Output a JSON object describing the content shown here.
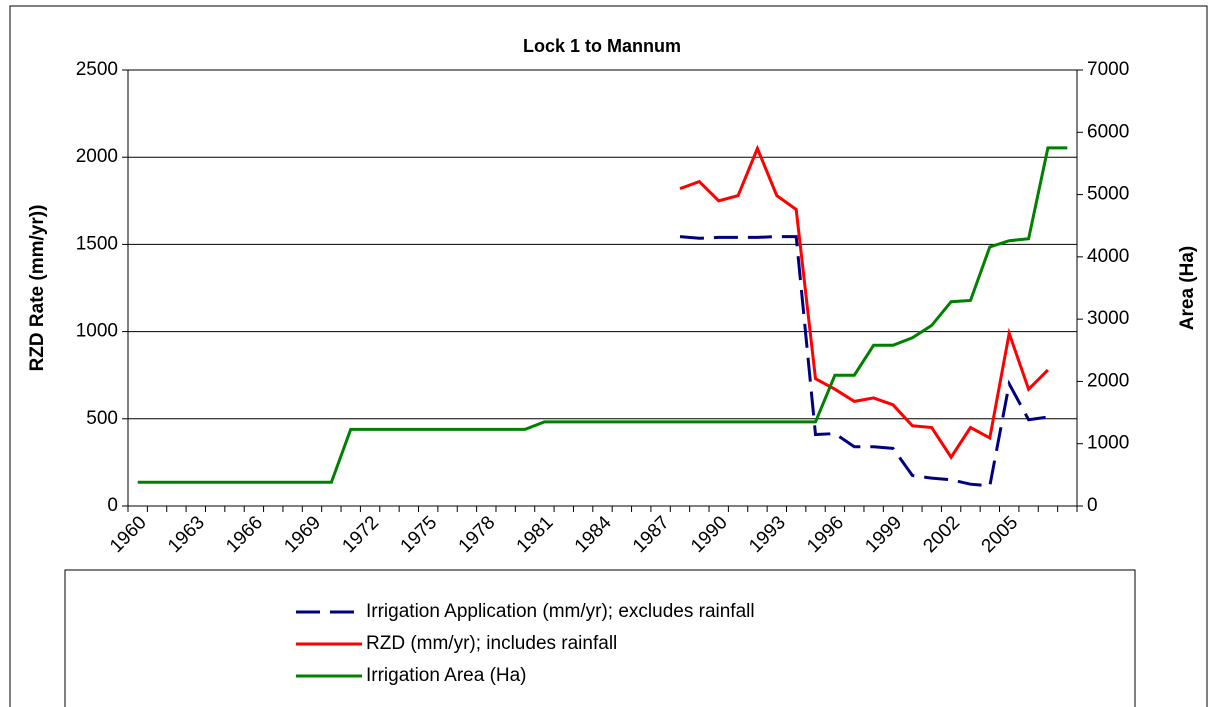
{
  "chart_data": {
    "type": "line",
    "title": "Lock 1 to Mannum",
    "y_label": "RZD Rate (mm/yr))",
    "y2_label": "Area (Ha)",
    "categories": [
      "1960",
      null,
      null,
      "1963",
      null,
      null,
      "1966",
      null,
      null,
      "1969",
      null,
      null,
      "1972",
      null,
      null,
      "1975",
      null,
      null,
      "1978",
      null,
      null,
      "1981",
      null,
      null,
      "1984",
      null,
      null,
      "1987",
      null,
      null,
      "1990",
      null,
      null,
      "1993",
      null,
      null,
      "1996",
      null,
      null,
      "1999",
      null,
      null,
      "2002",
      null,
      null,
      "2005",
      null,
      null,
      null
    ],
    "ylim": [
      0,
      2500
    ],
    "yticks": [
      0,
      500,
      1000,
      1500,
      2000,
      2500
    ],
    "y2lim": [
      0,
      7000
    ],
    "y2ticks": [
      0,
      1000,
      2000,
      3000,
      4000,
      5000,
      6000,
      7000
    ],
    "grid": true,
    "series": [
      {
        "name": "Irrigation Application (mm/yr); excludes rainfall",
        "color": "#000080",
        "dashed": true,
        "values": [
          null,
          null,
          null,
          null,
          null,
          null,
          null,
          null,
          null,
          null,
          null,
          null,
          null,
          null,
          null,
          null,
          null,
          null,
          null,
          null,
          null,
          null,
          null,
          null,
          null,
          null,
          null,
          null,
          1545,
          1535,
          1540,
          1540,
          1540,
          1545,
          1545,
          410,
          415,
          340,
          340,
          330,
          175,
          160,
          150,
          125,
          115,
          700,
          495,
          510,
          null
        ]
      },
      {
        "name": "RZD (mm/yr); includes rainfall",
        "color": "#ff0000",
        "values": [
          null,
          null,
          null,
          null,
          null,
          null,
          null,
          null,
          null,
          null,
          null,
          null,
          null,
          null,
          null,
          null,
          null,
          null,
          null,
          null,
          null,
          null,
          null,
          null,
          null,
          null,
          null,
          null,
          1820,
          1860,
          1750,
          1780,
          2050,
          1780,
          1700,
          730,
          670,
          600,
          620,
          580,
          460,
          450,
          280,
          450,
          390,
          990,
          670,
          780,
          null
        ]
      },
      {
        "name": "Irrigation Area (Ha)",
        "color": "#008000",
        "axis": "y2",
        "values": [
          380,
          380,
          380,
          380,
          380,
          380,
          380,
          380,
          380,
          380,
          380,
          1230,
          1230,
          1230,
          1230,
          1230,
          1230,
          1230,
          1230,
          1230,
          1230,
          1350,
          1350,
          1350,
          1350,
          1350,
          1350,
          1350,
          1350,
          1350,
          1350,
          1350,
          1350,
          1350,
          1350,
          1350,
          2100,
          2100,
          2580,
          2580,
          2700,
          2900,
          3280,
          3300,
          4160,
          4260,
          4290,
          5750,
          5750
        ]
      }
    ]
  }
}
